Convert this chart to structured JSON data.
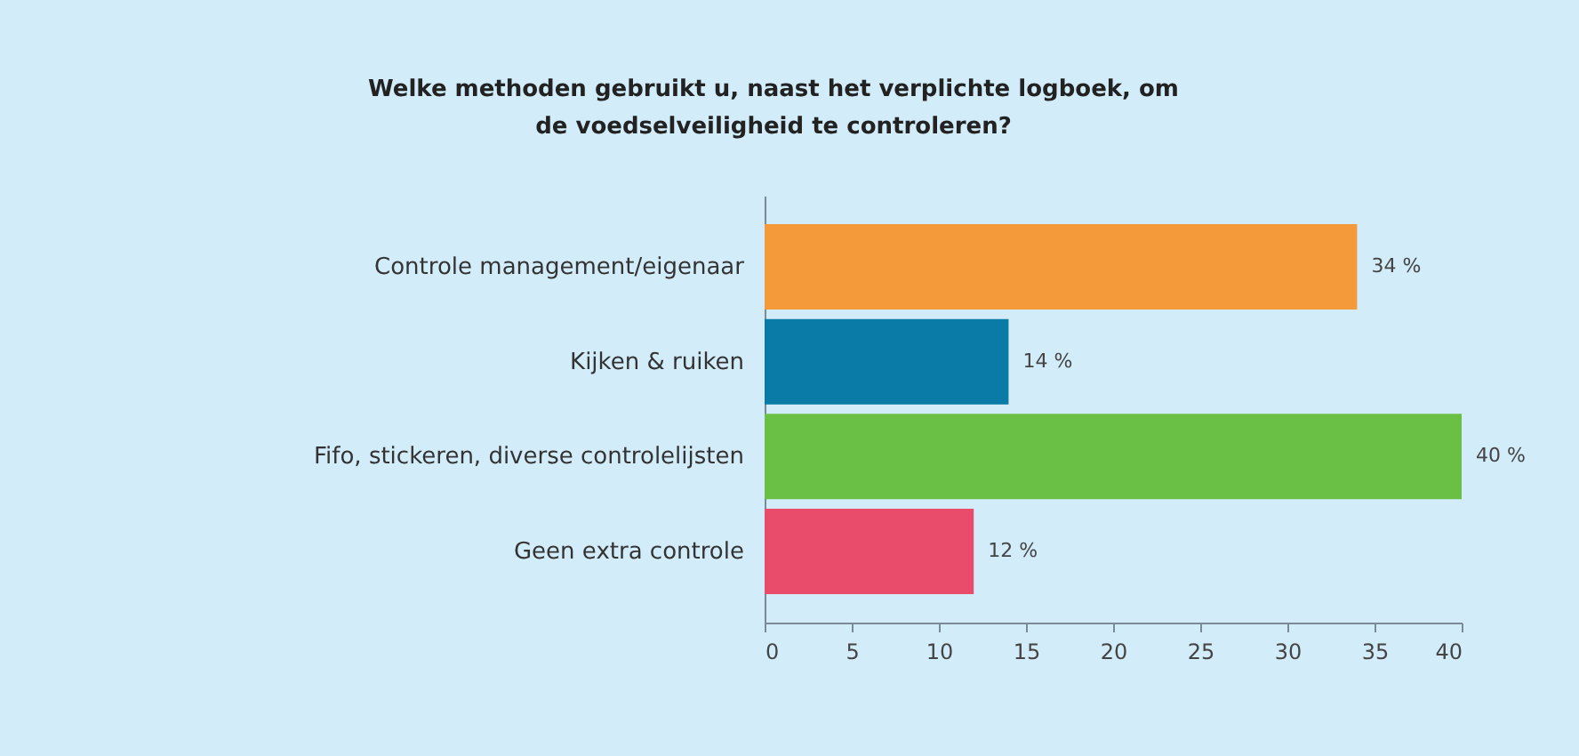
{
  "chart_data": {
    "type": "bar",
    "orientation": "horizontal",
    "title": "Welke methoden gebruikt u, naast het verplichte logboek, om de voedselveiligheid te controleren?",
    "categories": [
      "Controle management/eigenaar",
      "Kijken & ruiken",
      "Fifo, stickeren, diverse controlelijsten",
      "Geen extra controle"
    ],
    "values": [
      34,
      14,
      40,
      12
    ],
    "colors": [
      "#f59a3a",
      "#0a7aa6",
      "#6abf45",
      "#e94b6a"
    ],
    "value_labels": [
      "34 %",
      "14 %",
      "40 %",
      "12 %"
    ],
    "xlim": [
      0,
      40
    ],
    "xticks": [
      0,
      5,
      10,
      15,
      20,
      25,
      30,
      35,
      40
    ]
  }
}
